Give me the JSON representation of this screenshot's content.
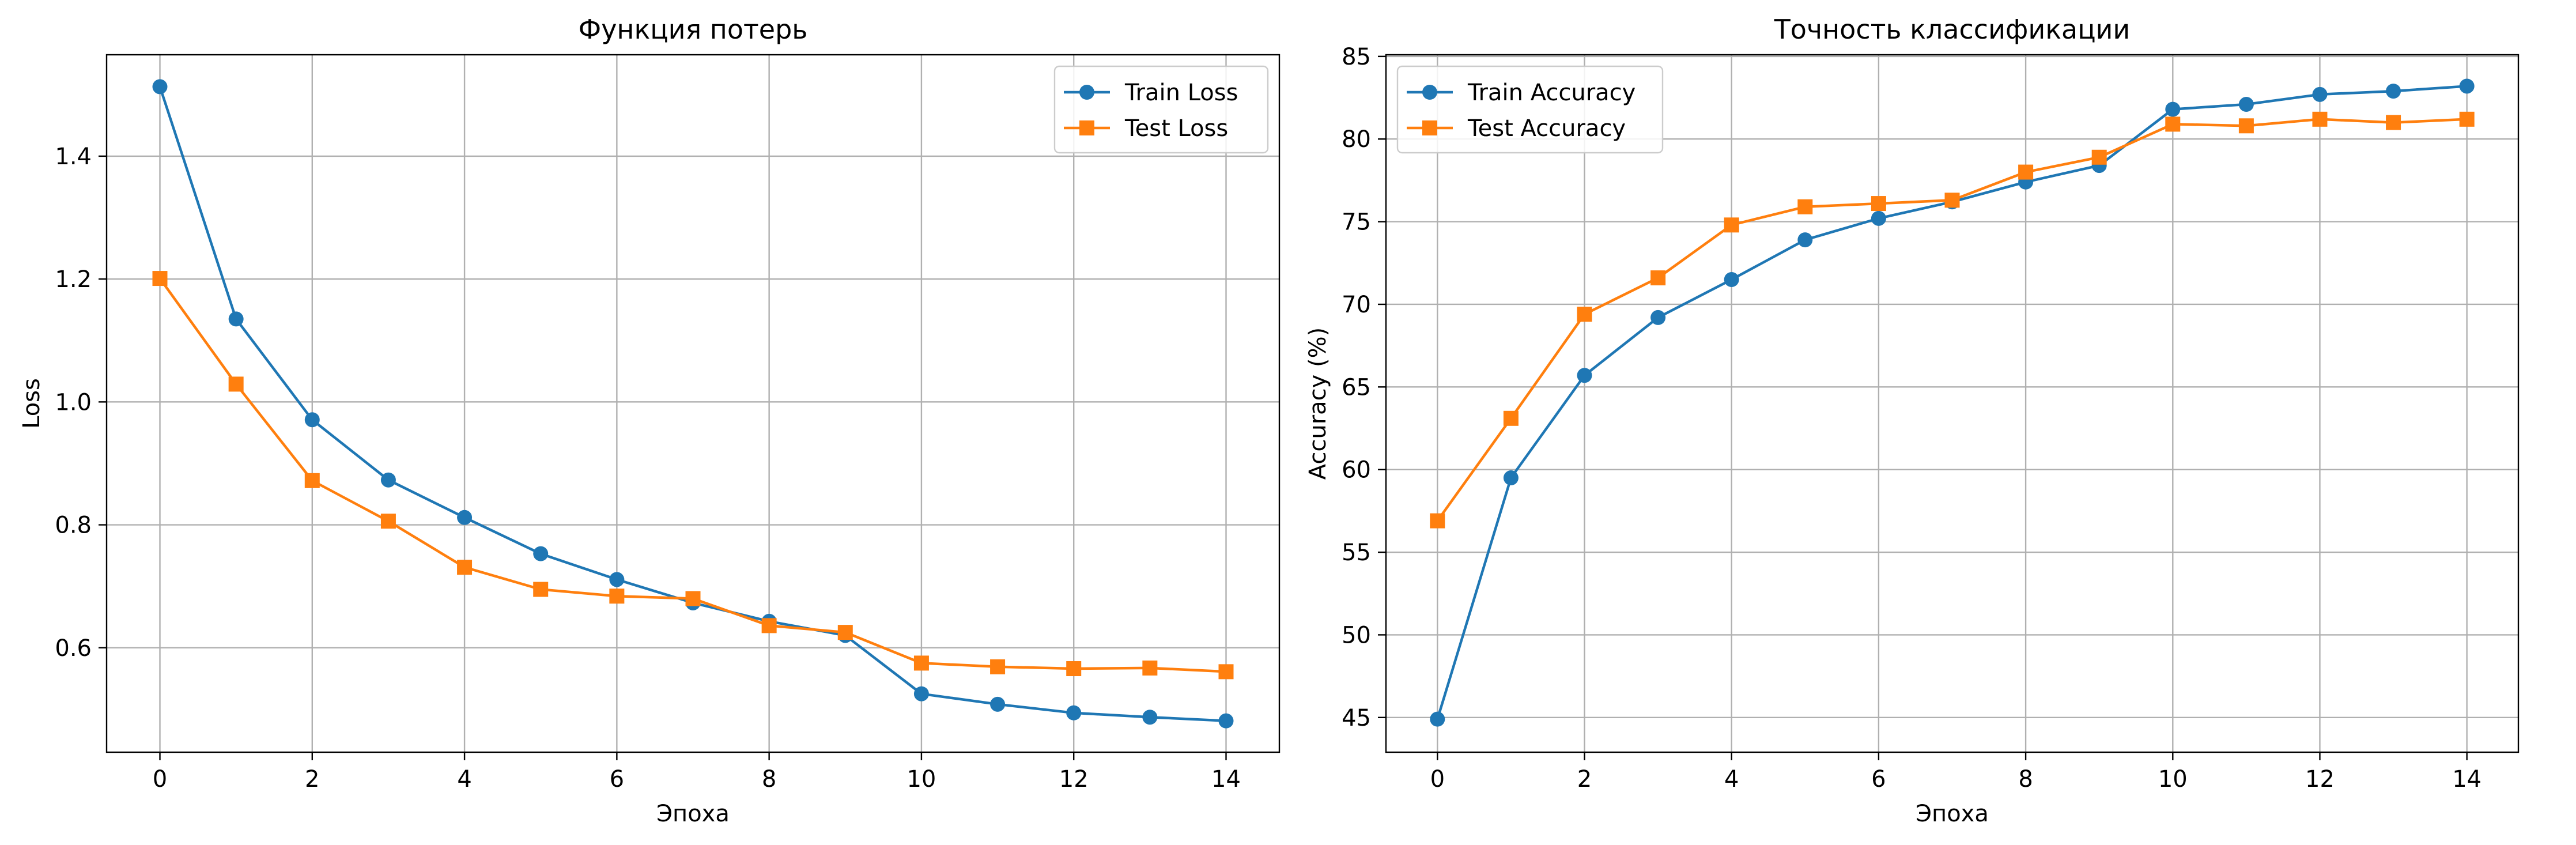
{
  "colors": {
    "train": "#1f77b4",
    "test": "#ff7f0e",
    "grid": "#b0b0b0",
    "axes": "#000000"
  },
  "chart_data": [
    {
      "type": "line",
      "title": "Функция потерь",
      "xlabel": "Эпоха",
      "ylabel": "Loss",
      "xlim": [
        -0.7,
        14.7
      ],
      "ylim": [
        0.43,
        1.565
      ],
      "xticks": [
        0,
        2,
        4,
        6,
        8,
        10,
        12,
        14
      ],
      "yticks": [
        0.6,
        0.8,
        1.0,
        1.2,
        1.4
      ],
      "ytick_labels": [
        "0.6",
        "0.8",
        "1.0",
        "1.2",
        "1.4"
      ],
      "grid": true,
      "legend_position": "top-right",
      "x": [
        0,
        1,
        2,
        3,
        4,
        5,
        6,
        7,
        8,
        9,
        10,
        11,
        12,
        13,
        14
      ],
      "series": [
        {
          "name": "Train Loss",
          "marker": "circle",
          "color": "#1f77b4",
          "values": [
            1.513,
            1.135,
            0.971,
            0.873,
            0.812,
            0.753,
            0.711,
            0.673,
            0.643,
            0.62,
            0.525,
            0.508,
            0.494,
            0.487,
            0.481
          ]
        },
        {
          "name": "Test Loss",
          "marker": "square",
          "color": "#ff7f0e",
          "values": [
            1.201,
            1.029,
            0.872,
            0.806,
            0.731,
            0.695,
            0.684,
            0.68,
            0.636,
            0.625,
            0.575,
            0.569,
            0.566,
            0.567,
            0.561
          ]
        }
      ]
    },
    {
      "type": "line",
      "title": "Точность классификации",
      "xlabel": "Эпоха",
      "ylabel": "Accuracy (%)",
      "xlim": [
        -0.7,
        14.7
      ],
      "ylim": [
        42.9,
        85.1
      ],
      "xticks": [
        0,
        2,
        4,
        6,
        8,
        10,
        12,
        14
      ],
      "yticks": [
        45,
        50,
        55,
        60,
        65,
        70,
        75,
        80,
        85
      ],
      "ytick_labels": [
        "45",
        "50",
        "55",
        "60",
        "65",
        "70",
        "75",
        "80",
        "85"
      ],
      "grid": true,
      "legend_position": "top-left",
      "x": [
        0,
        1,
        2,
        3,
        4,
        5,
        6,
        7,
        8,
        9,
        10,
        11,
        12,
        13,
        14
      ],
      "series": [
        {
          "name": "Train Accuracy",
          "marker": "circle",
          "color": "#1f77b4",
          "values": [
            44.9,
            59.5,
            65.7,
            69.2,
            71.5,
            73.9,
            75.2,
            76.2,
            77.4,
            78.4,
            81.8,
            82.1,
            82.7,
            82.9,
            83.2
          ]
        },
        {
          "name": "Test Accuracy",
          "marker": "square",
          "color": "#ff7f0e",
          "values": [
            56.9,
            63.1,
            69.4,
            71.6,
            74.8,
            75.9,
            76.1,
            76.3,
            78.0,
            78.9,
            80.9,
            80.8,
            81.2,
            81.0,
            81.2
          ]
        }
      ]
    }
  ]
}
